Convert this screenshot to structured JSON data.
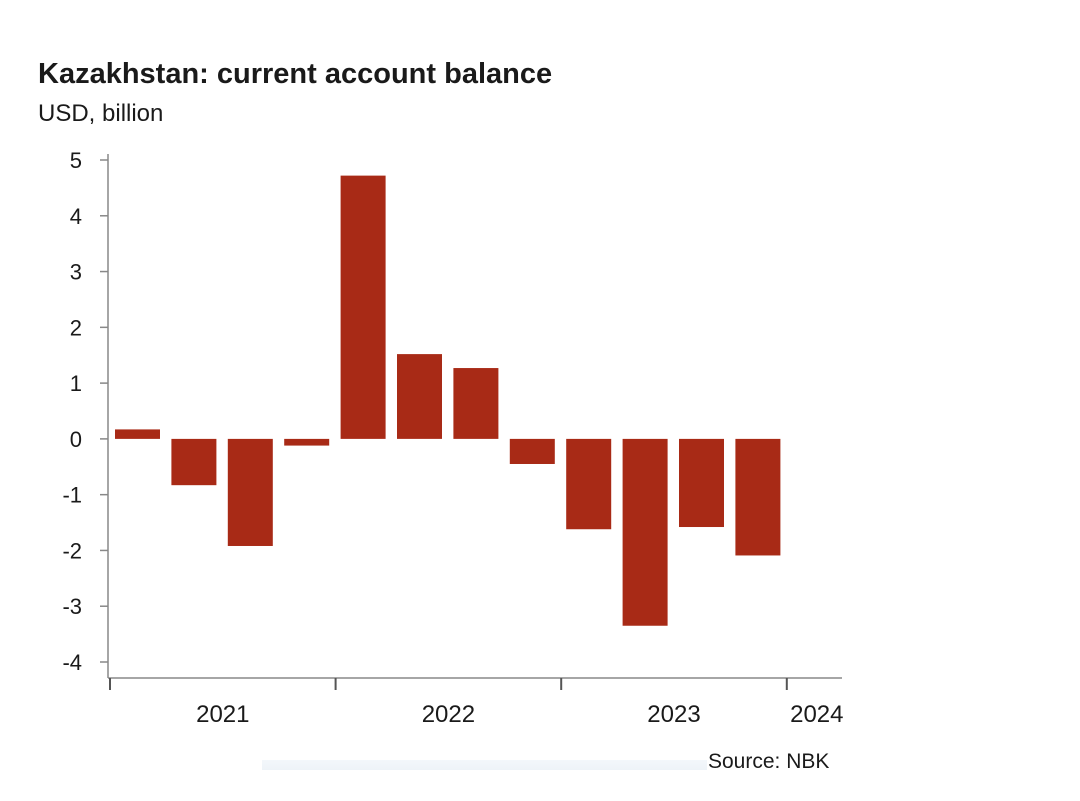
{
  "title": "Kazakhstan: current account balance",
  "unit": "USD, billion",
  "source": "Source: NBK",
  "colors": {
    "bar": "#a82a16",
    "axis": "#888888"
  },
  "chart_data": {
    "type": "bar",
    "title": "Kazakhstan: current account balance",
    "ylabel": "USD, billion",
    "xlabel": "",
    "ylim": [
      -4,
      5
    ],
    "yticks": [
      5,
      4,
      3,
      2,
      1,
      0,
      -1,
      -2,
      -3,
      -4
    ],
    "year_labels": [
      "2021",
      "2022",
      "2023",
      "2024"
    ],
    "categories": [
      "2021 Q1",
      "2021 Q2",
      "2021 Q3",
      "2021 Q4",
      "2022 Q1",
      "2022 Q2",
      "2022 Q3",
      "2022 Q4",
      "2023 Q1",
      "2023 Q2",
      "2023 Q3",
      "2023 Q4"
    ],
    "values": [
      0.17,
      -0.83,
      -1.92,
      -0.12,
      4.72,
      1.52,
      1.27,
      -0.45,
      -1.62,
      -3.35,
      -1.58,
      -2.09
    ],
    "grid": false,
    "legend": "none"
  }
}
